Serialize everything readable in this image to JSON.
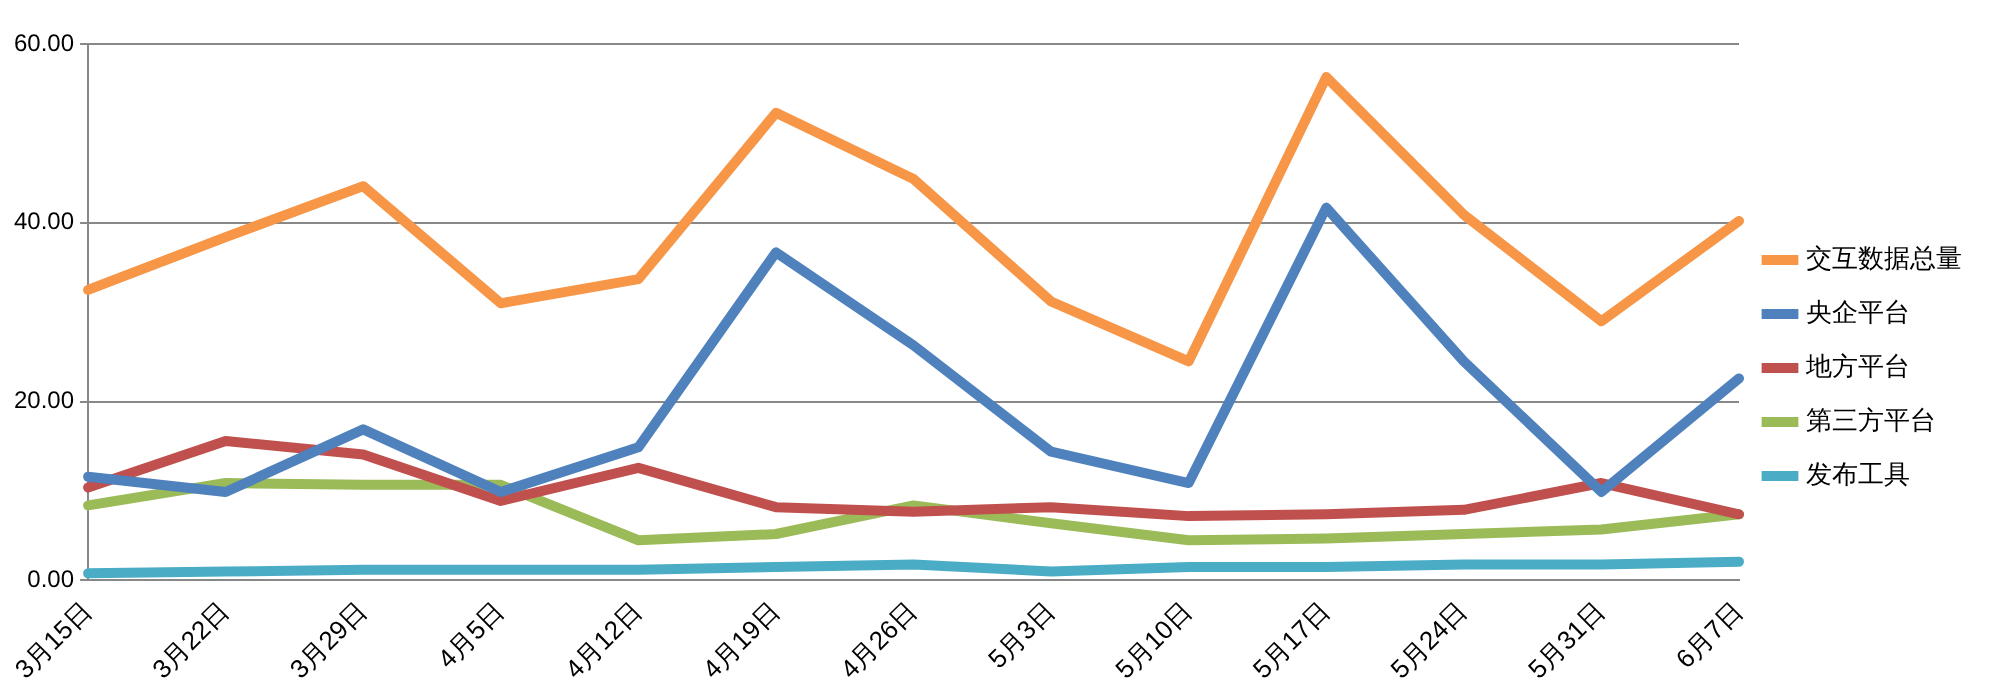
{
  "chart_data": {
    "type": "line",
    "categories": [
      "3月15日",
      "3月22日",
      "3月29日",
      "4月5日",
      "4月12日",
      "4月19日",
      "4月26日",
      "5月3日",
      "5月10日",
      "5月17日",
      "5月24日",
      "5月31日",
      "6月7日"
    ],
    "series": [
      {
        "name": "交互数据总量",
        "color": "#f79646",
        "values": [
          32.5,
          38.4,
          44.1,
          31,
          33.7,
          52.3,
          44.9,
          31.2,
          24.5,
          56.3,
          40.9,
          29,
          40.2
        ]
      },
      {
        "name": "央企平台",
        "color": "#4f81bd",
        "values": [
          11.6,
          9.9,
          16.9,
          9.9,
          14.9,
          36.7,
          26.3,
          14.4,
          10.9,
          41.7,
          24.5,
          9.9,
          22.6
        ]
      },
      {
        "name": "地方平台",
        "color": "#c0504d",
        "values": [
          10.4,
          15.6,
          14.1,
          8.9,
          12.6,
          8.2,
          7.7,
          8.2,
          7.2,
          7.4,
          7.9,
          10.9,
          7.4
        ]
      },
      {
        "name": "第三方平台",
        "color": "#9bbb59",
        "values": [
          8.4,
          10.9,
          10.7,
          10.7,
          4.5,
          5.2,
          8.4,
          6.4,
          4.5,
          4.7,
          5.2,
          5.7,
          7.4
        ]
      },
      {
        "name": "发布工具",
        "color": "#4bacc6",
        "values": [
          0.8,
          1.0,
          1.2,
          1.2,
          1.2,
          1.5,
          1.8,
          1.0,
          1.5,
          1.5,
          1.8,
          1.8,
          2.1
        ]
      }
    ],
    "ylim": [
      0,
      60
    ],
    "yticks": [
      {
        "value": 0,
        "label": "0.00"
      },
      {
        "value": 20,
        "label": "20.00"
      },
      {
        "value": 40,
        "label": "40.00"
      },
      {
        "value": 60,
        "label": "60.00"
      }
    ],
    "grid": "y",
    "legend": "right",
    "marker": "none",
    "line_style": "solid"
  }
}
